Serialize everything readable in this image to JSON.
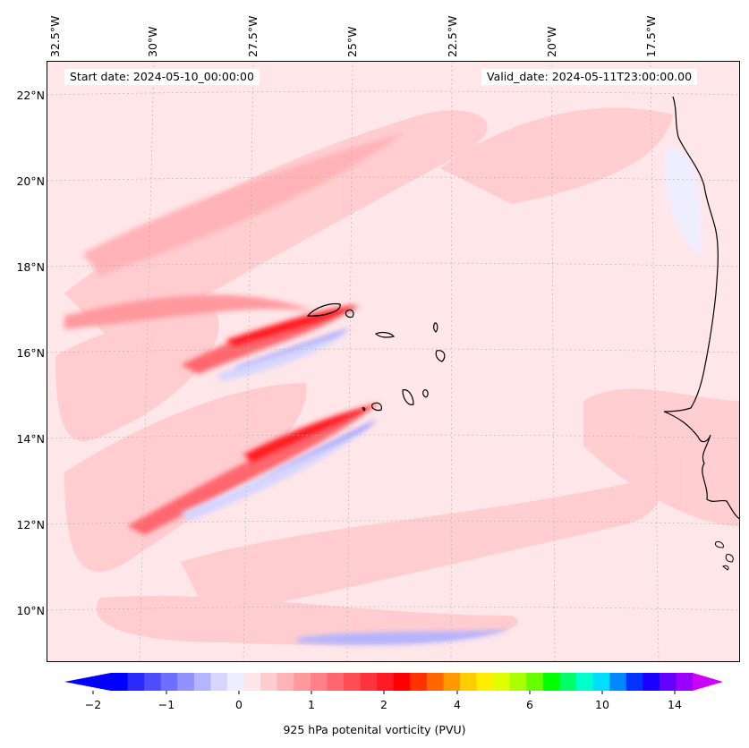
{
  "map": {
    "start_label": "Start date: 2024-05-10_00:00:00",
    "valid_label": "Valid_date: 2024-05-11T23:00:00.00",
    "background_color": "#ffe6e8",
    "longitude_labels": [
      "32.5°W",
      "30°W",
      "27.5°W",
      "25°W",
      "22.5°W",
      "20°W",
      "17.5°W"
    ],
    "latitude_labels": [
      "22°N",
      "20°N",
      "18°N",
      "16°N",
      "14°N",
      "12°N",
      "10°N"
    ]
  },
  "colorbar": {
    "title": "925 hPa potenital vorticity (PVU)",
    "tick_labels": [
      "−2",
      "−1",
      "0",
      "1",
      "2",
      "4",
      "6",
      "10",
      "14"
    ],
    "colors": [
      "#0000ff",
      "#2a2aff",
      "#4d4dff",
      "#6f6fff",
      "#9292ff",
      "#b4b4ff",
      "#d6d6ff",
      "#eeeeff",
      "#ffe6e8",
      "#ffcccf",
      "#ffb3b7",
      "#ff999e",
      "#ff8086",
      "#ff666d",
      "#ff4d55",
      "#ff333c",
      "#ff1a24",
      "#ff0000",
      "#ff3300",
      "#ff6600",
      "#ff9900",
      "#ffcc00",
      "#ffee00",
      "#ddff00",
      "#aaff00",
      "#66ff00",
      "#00ff00",
      "#00ff66",
      "#00ffcc",
      "#00ddff",
      "#0088ff",
      "#0033ff",
      "#1a00ff",
      "#6600ff",
      "#9900ff"
    ],
    "under_color": "#0000ff",
    "over_color": "#cc00ff"
  }
}
